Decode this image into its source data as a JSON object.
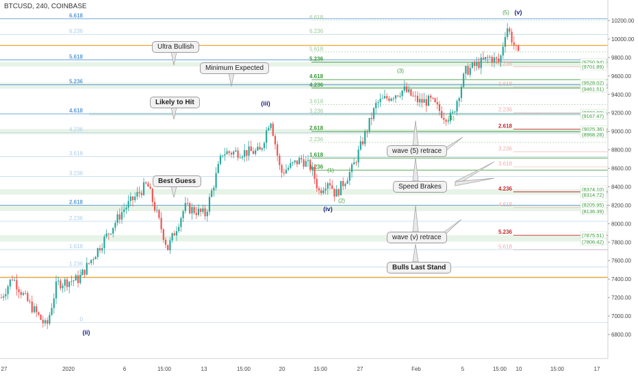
{
  "header": {
    "title": "BTCUSD, 240, COINBASE"
  },
  "price_axis": {
    "min": 6680,
    "max": 10380,
    "labels": [
      "10200.00",
      "10000.00",
      "9800.00",
      "9600.00",
      "9400.00",
      "9200.00",
      "9000.00",
      "8800.00",
      "8600.00",
      "8400.00",
      "8200.00",
      "8000.00",
      "7800.00",
      "7600.00",
      "7400.00",
      "7200.00",
      "7000.00",
      "6800.00"
    ]
  },
  "time_axis": {
    "labels": [
      "27",
      "2020",
      "6",
      "15:00",
      "13",
      "15:00",
      "20",
      "15:00",
      "27",
      "Feb",
      "5",
      "15:00",
      "10",
      "15:00",
      "17"
    ]
  },
  "colors": {
    "up_candle": "#26a69a",
    "down_candle": "#ef5350",
    "blue_fib": "#5b9bd5",
    "pale_blue_fib": "#a9cbe8",
    "green_fib": "#3a9a3a",
    "pale_green_fib": "#9ac79a",
    "red_fib": "#c62828",
    "pink_fib": "#f3a9a9",
    "orange_line": "#f5a623",
    "wave_label": "#1a237e"
  },
  "callouts": [
    {
      "id": "ultra-bullish",
      "text": "Ultra Bullish",
      "bold": false
    },
    {
      "id": "minimum-expected",
      "text": "Minimum Expected",
      "bold": false
    },
    {
      "id": "likely-to-hit",
      "text": "Likely to Hit",
      "bold": true
    },
    {
      "id": "best-guess",
      "text": "Best Guess",
      "bold": true
    },
    {
      "id": "wave-5-retrace",
      "text": "wave (5) retrace",
      "bold": false
    },
    {
      "id": "speed-brakes",
      "text": "Speed Brakes",
      "bold": false
    },
    {
      "id": "wave-v-retrace",
      "text": "wave (v) retrace",
      "bold": false
    },
    {
      "id": "bulls-last-stand",
      "text": "Bulls Last Stand",
      "bold": true
    }
  ],
  "fib_blue": [
    {
      "label": "6.618",
      "price": 10220,
      "strong": true
    },
    {
      "label": "6.236",
      "price": 10050,
      "strong": false
    },
    {
      "label": "5.618",
      "price": 9775,
      "strong": true
    },
    {
      "label": "5.236",
      "price": 9505,
      "strong": true
    },
    {
      "label": "4.618",
      "price": 9190,
      "strong": true
    },
    {
      "label": "4.236",
      "price": 8985,
      "strong": false
    },
    {
      "label": "3.618",
      "price": 8725,
      "strong": false
    },
    {
      "label": "3.236",
      "price": 8510,
      "strong": false
    },
    {
      "label": "2.618",
      "price": 8200,
      "strong": true
    },
    {
      "label": "2.236",
      "price": 8025,
      "strong": false
    },
    {
      "label": "1.618",
      "price": 7720,
      "strong": false
    },
    {
      "label": "1.236",
      "price": 7530,
      "strong": false
    },
    {
      "label": "1",
      "price": 7415,
      "strong": false
    },
    {
      "label": "0",
      "price": 6930,
      "strong": false
    }
  ],
  "fib_green": [
    {
      "label": "6.618",
      "price": 10200,
      "strong": false
    },
    {
      "label": "6.236",
      "price": 10050,
      "strong": false
    },
    {
      "label": "5.618",
      "price": 9860,
      "strong": false
    },
    {
      "label": "5.236",
      "price": 9750,
      "strong": true
    },
    {
      "label": "4.618",
      "price": 9560,
      "strong": true
    },
    {
      "label": "4.236",
      "price": 9470,
      "strong": true
    },
    {
      "label": "3.618",
      "price": 9290,
      "strong": false
    },
    {
      "label": "3.236",
      "price": 9185,
      "strong": false
    },
    {
      "label": "2.618",
      "price": 9000,
      "strong": true
    },
    {
      "label": "2.236",
      "price": 8880,
      "strong": false
    },
    {
      "label": "1.618",
      "price": 8710,
      "strong": true
    },
    {
      "label": "1.236",
      "price": 8580,
      "strong": true
    }
  ],
  "fib_red": [
    {
      "label": "1.236",
      "price": 9700,
      "strong": false
    },
    {
      "label": "1.618",
      "price": 9480,
      "strong": false
    },
    {
      "label": "2.236",
      "price": 9200,
      "strong": false
    },
    {
      "label": "2.618",
      "price": 9025,
      "strong": true
    },
    {
      "label": "3.236",
      "price": 8780,
      "strong": false
    },
    {
      "label": "3.618",
      "price": 8615,
      "strong": false
    },
    {
      "label": "4.236",
      "price": 8345,
      "strong": true
    },
    {
      "label": "4.618",
      "price": 8175,
      "strong": false
    },
    {
      "label": "5.236",
      "price": 7875,
      "strong": true
    },
    {
      "label": "5.618",
      "price": 7715,
      "strong": false
    }
  ],
  "price_boxes": [
    {
      "text": "(9750.94)",
      "price": 9750.94
    },
    {
      "text": "(9701.89)",
      "price": 9701.89
    },
    {
      "text": "(9528.02)",
      "price": 9528.02
    },
    {
      "text": "(9461.51)",
      "price": 9461.51
    },
    {
      "text": "(9203.69)",
      "price": 9203.69
    },
    {
      "text": "(9167.47)",
      "price": 9167.47
    },
    {
      "text": "(9025.36)",
      "price": 9025.36
    },
    {
      "text": "(8968.28)",
      "price": 8968.28
    },
    {
      "text": "(8374.10)",
      "price": 8374.1
    },
    {
      "text": "(8314.72)",
      "price": 8314.72
    },
    {
      "text": "(8205.95)",
      "price": 8205.95
    },
    {
      "text": "(8136.39)",
      "price": 8136.39
    },
    {
      "text": "(7875.51)",
      "price": 7875.51
    },
    {
      "text": "(7806.42)",
      "price": 7806.42
    }
  ],
  "wave_labels": [
    {
      "text": "(ii)",
      "price": 6800,
      "color": "navy"
    },
    {
      "text": "(iii)",
      "price": 9280,
      "color": "navy"
    },
    {
      "text": "(iv)",
      "price": 8135,
      "color": "navy"
    },
    {
      "text": "(v)",
      "price": 10265,
      "color": "navy"
    },
    {
      "text": "(5)",
      "price": 10265,
      "color": "green"
    },
    {
      "text": "(1)",
      "price": 8560,
      "color": "green"
    },
    {
      "text": "(2)",
      "price": 8230,
      "color": "green"
    },
    {
      "text": "(3)",
      "price": 9635,
      "color": "green"
    },
    {
      "text": "(4)",
      "price": 9125,
      "color": "green"
    }
  ],
  "chart_data": {
    "type": "candlestick",
    "symbol": "BTCUSD",
    "interval": "240",
    "exchange": "COINBASE",
    "ylim": [
      6680,
      10380
    ],
    "anchors": [
      {
        "label": "27 Dec",
        "price": 7200
      },
      {
        "label": "Dec 29",
        "price": 7420
      },
      {
        "label": "Dec 31",
        "price": 7180
      },
      {
        "label": "Jan 2",
        "price": 6880
      },
      {
        "label": "Jan 3",
        "price": 7350
      },
      {
        "label": "Jan 5",
        "price": 7400
      },
      {
        "label": "Jan 7",
        "price": 8150
      },
      {
        "label": "Jan 8",
        "price": 8430
      },
      {
        "label": "Jan 10",
        "price": 7730
      },
      {
        "label": "Jan 11",
        "price": 8180
      },
      {
        "label": "Jan 13",
        "price": 8100
      },
      {
        "label": "Jan 14",
        "price": 8770
      },
      {
        "label": "Jan 16",
        "price": 8780
      },
      {
        "label": "Jan 18",
        "price": 9150
      },
      {
        "label": "Jan 19",
        "price": 8550
      },
      {
        "label": "Jan 21",
        "price": 8700
      },
      {
        "label": "Jan 22",
        "price": 8600
      },
      {
        "label": "Jan 23",
        "price": 8350
      },
      {
        "label": "Jan 24",
        "price": 8480
      },
      {
        "label": "Jan 25",
        "price": 8310
      },
      {
        "label": "Jan 27",
        "price": 8600
      },
      {
        "label": "Jan 28",
        "price": 9300
      },
      {
        "label": "Jan 29",
        "price": 9380
      },
      {
        "label": "Jan 30",
        "price": 9450
      },
      {
        "label": "Jan 31",
        "price": 9320
      },
      {
        "label": "Feb 2",
        "price": 9330
      },
      {
        "label": "Feb 3",
        "price": 9170
      },
      {
        "label": "Feb 4",
        "price": 9150
      },
      {
        "label": "Feb 5",
        "price": 9650
      },
      {
        "label": "Feb 7",
        "price": 9800
      },
      {
        "label": "Feb 8",
        "price": 9750
      },
      {
        "label": "Feb 9",
        "price": 10150
      },
      {
        "label": "Feb 10",
        "price": 9800
      }
    ]
  }
}
